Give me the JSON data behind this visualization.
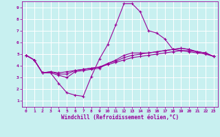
{
  "xlabel": "Windchill (Refroidissement éolien,°C)",
  "xlim": [
    -0.5,
    23.5
  ],
  "ylim": [
    0.5,
    9.5
  ],
  "xticks": [
    0,
    1,
    2,
    3,
    4,
    5,
    6,
    7,
    8,
    9,
    10,
    11,
    12,
    13,
    14,
    15,
    16,
    17,
    18,
    19,
    20,
    21,
    22,
    23
  ],
  "yticks": [
    1,
    2,
    3,
    4,
    5,
    6,
    7,
    8,
    9
  ],
  "bg_color": "#c8f0f0",
  "line_color": "#990099",
  "grid_color": "#aadddd",
  "lines": [
    {
      "x": [
        0,
        1,
        2,
        3,
        4,
        5,
        6,
        7,
        8,
        9,
        10,
        11,
        12,
        13,
        14,
        15,
        16,
        17,
        18,
        19,
        20,
        21,
        22,
        23
      ],
      "y": [
        4.9,
        4.5,
        3.4,
        3.4,
        2.5,
        1.7,
        1.5,
        1.4,
        3.1,
        4.6,
        5.8,
        7.5,
        9.3,
        9.3,
        8.6,
        7.0,
        6.8,
        6.3,
        5.4,
        5.3,
        5.2,
        5.1,
        5.0,
        4.8
      ]
    },
    {
      "x": [
        0,
        1,
        2,
        3,
        4,
        5,
        6,
        7,
        8,
        9,
        10,
        11,
        12,
        13,
        14,
        15,
        16,
        17,
        18,
        19,
        20,
        21,
        22,
        23
      ],
      "y": [
        4.9,
        4.5,
        3.4,
        3.4,
        3.2,
        3.0,
        3.5,
        3.6,
        3.7,
        3.8,
        4.2,
        4.5,
        4.9,
        5.1,
        5.1,
        5.1,
        5.2,
        5.3,
        5.4,
        5.5,
        5.4,
        5.2,
        5.1,
        4.8
      ]
    },
    {
      "x": [
        0,
        1,
        2,
        3,
        4,
        5,
        6,
        7,
        8,
        9,
        10,
        11,
        12,
        13,
        14,
        15,
        16,
        17,
        18,
        19,
        20,
        21,
        22,
        23
      ],
      "y": [
        4.9,
        4.5,
        3.4,
        3.5,
        3.3,
        3.3,
        3.6,
        3.7,
        3.8,
        3.9,
        4.2,
        4.4,
        4.7,
        4.9,
        5.0,
        5.1,
        5.2,
        5.3,
        5.4,
        5.5,
        5.4,
        5.2,
        5.1,
        4.8
      ]
    },
    {
      "x": [
        0,
        1,
        2,
        3,
        4,
        5,
        6,
        7,
        8,
        9,
        10,
        11,
        12,
        13,
        14,
        15,
        16,
        17,
        18,
        19,
        20,
        21,
        22,
        23
      ],
      "y": [
        4.9,
        4.5,
        3.4,
        3.5,
        3.4,
        3.5,
        3.6,
        3.7,
        3.8,
        3.9,
        4.1,
        4.3,
        4.5,
        4.7,
        4.8,
        4.9,
        5.0,
        5.1,
        5.2,
        5.3,
        5.3,
        5.2,
        5.1,
        4.8
      ]
    }
  ]
}
